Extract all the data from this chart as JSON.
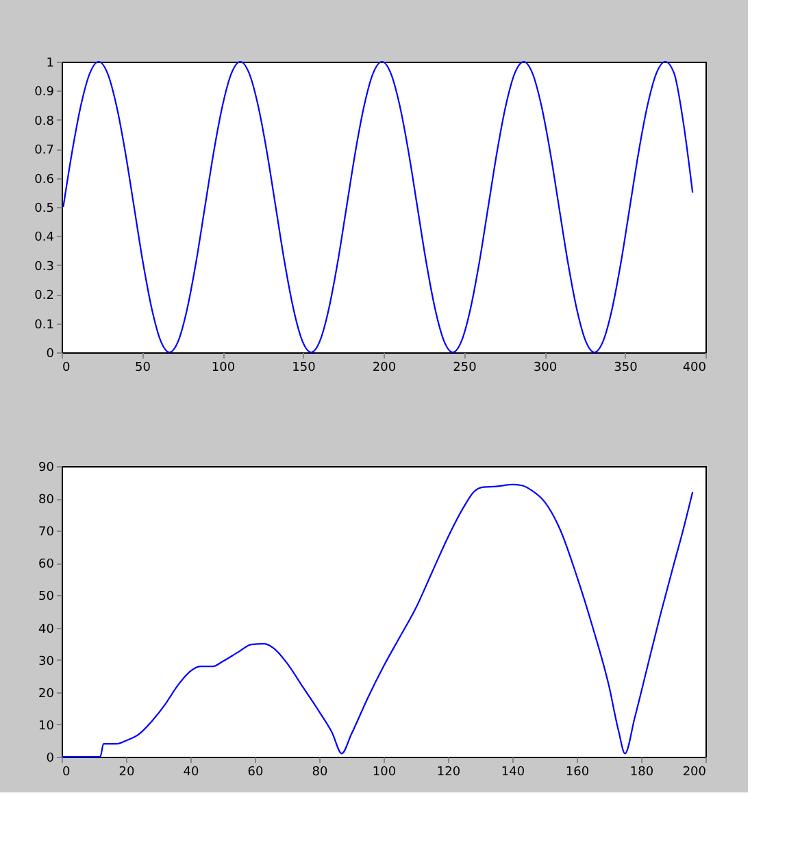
{
  "chart_data": [
    {
      "type": "line",
      "x": [
        1,
        6.5,
        12,
        17.5,
        23,
        28.5,
        34,
        39.5,
        45,
        50.5,
        56,
        61.5,
        67,
        72.5,
        78,
        83.5,
        89,
        94.5,
        100,
        105.5,
        111,
        116.5,
        122,
        127.5,
        133,
        138.5,
        144,
        149.5,
        155,
        160.5,
        166,
        171.5,
        177,
        182.5,
        188,
        193.5,
        199,
        204.5,
        210,
        215.5,
        221,
        226.5,
        232,
        237.5,
        243,
        248.5,
        254,
        259.5,
        265,
        270.5,
        276,
        281.5,
        287,
        292.5,
        298,
        303.5,
        309,
        314.5,
        320,
        325.5,
        331,
        336.5,
        342,
        347.5,
        353,
        358.5,
        364,
        369.5,
        375,
        380.5,
        386,
        392
      ],
      "series": [
        {
          "color": "#0000ff",
          "values": [
            0.5,
            0.69,
            0.85,
            0.96,
            1,
            0.96,
            0.85,
            0.69,
            0.5,
            0.31,
            0.15,
            0.04,
            0,
            0.04,
            0.15,
            0.31,
            0.5,
            0.69,
            0.85,
            0.96,
            1,
            0.96,
            0.85,
            0.69,
            0.5,
            0.31,
            0.15,
            0.04,
            0,
            0.04,
            0.15,
            0.31,
            0.5,
            0.69,
            0.85,
            0.96,
            1,
            0.96,
            0.85,
            0.69,
            0.5,
            0.31,
            0.15,
            0.04,
            0,
            0.04,
            0.15,
            0.31,
            0.5,
            0.69,
            0.85,
            0.96,
            1,
            0.96,
            0.85,
            0.69,
            0.5,
            0.31,
            0.15,
            0.04,
            0,
            0.04,
            0.15,
            0.31,
            0.5,
            0.69,
            0.85,
            0.96,
            1,
            0.96,
            0.8,
            0.55
          ]
        }
      ],
      "xlim": [
        0,
        400
      ],
      "xticks": [
        0,
        50,
        100,
        150,
        200,
        250,
        300,
        350,
        400
      ],
      "ylim": [
        0,
        1
      ],
      "yticks": [
        0,
        0.1,
        0.2,
        0.3,
        0.4,
        0.5,
        0.6,
        0.7,
        0.8,
        0.9,
        1
      ],
      "grid": false
    },
    {
      "type": "line",
      "x": [
        0,
        12,
        13,
        17,
        20,
        24,
        28,
        32,
        36,
        40,
        43,
        47,
        50,
        55,
        59,
        63,
        66,
        70,
        75,
        80,
        84,
        87,
        90,
        95,
        100,
        105,
        110,
        115,
        120,
        125,
        128,
        131,
        135,
        140,
        143,
        146,
        150,
        155,
        160,
        165,
        170,
        173,
        175,
        178,
        182,
        186,
        190,
        193,
        196
      ],
      "series": [
        {
          "color": "#0000ff",
          "values": [
            0,
            0,
            4,
            4,
            5,
            7,
            11,
            16,
            22,
            26.5,
            28,
            28,
            29.5,
            32.5,
            34.8,
            35,
            33.5,
            29,
            21.5,
            14,
            7.5,
            1,
            7,
            18,
            28,
            37,
            46,
            57,
            68,
            77.5,
            82,
            83.5,
            83.7,
            84.3,
            84,
            82.5,
            79,
            70,
            56,
            40,
            22,
            8,
            1,
            12,
            28,
            44,
            59,
            70,
            82
          ]
        }
      ],
      "xlim": [
        0,
        200
      ],
      "xticks": [
        0,
        20,
        40,
        60,
        80,
        100,
        120,
        140,
        160,
        180,
        200
      ],
      "ylim": [
        0,
        90
      ],
      "yticks": [
        0,
        10,
        20,
        30,
        40,
        50,
        60,
        70,
        80,
        90
      ],
      "grid": false
    }
  ]
}
